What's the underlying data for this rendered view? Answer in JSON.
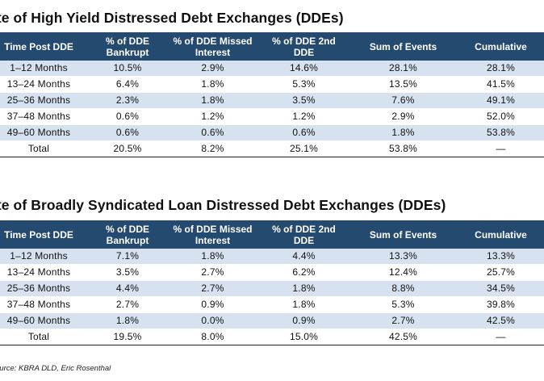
{
  "tables": [
    {
      "title": "ate of High Yield Distressed Debt Exchanges (DDEs)",
      "headers": [
        "Time Post DDE",
        "% of DDE\nBankrupt",
        "% of DDE Missed\nInterest",
        "% of DDE 2nd\nDDE",
        "Sum of Events",
        "Cumulative"
      ],
      "rows": [
        [
          "1–12 Months",
          "10.5%",
          "2.9%",
          "14.6%",
          "28.1%",
          "28.1%"
        ],
        [
          "13–24 Months",
          "6.4%",
          "1.8%",
          "5.3%",
          "13.5%",
          "41.5%"
        ],
        [
          "25–36 Months",
          "2.3%",
          "1.8%",
          "3.5%",
          "7.6%",
          "49.1%"
        ],
        [
          "37–48 Months",
          "0.6%",
          "1.2%",
          "1.2%",
          "2.9%",
          "52.0%"
        ],
        [
          "49–60 Months",
          "0.6%",
          "0.6%",
          "0.6%",
          "1.8%",
          "53.8%"
        ],
        [
          "Total",
          "20.5%",
          "8.2%",
          "25.1%",
          "53.8%",
          "—"
        ]
      ]
    },
    {
      "title": "ate of Broadly Syndicated Loan Distressed Debt Exchanges (DDEs)",
      "headers": [
        "Time Post DDE",
        "% of DDE\nBankrupt",
        "% of DDE Missed\nInterest",
        "% of DDE 2nd\nDDE",
        "Sum of Events",
        "Cumulative"
      ],
      "rows": [
        [
          "1–12 Months",
          "7.1%",
          "1.8%",
          "4.4%",
          "13.3%",
          "13.3%"
        ],
        [
          "13–24 Months",
          "3.5%",
          "2.7%",
          "6.2%",
          "12.4%",
          "25.7%"
        ],
        [
          "25–36 Months",
          "4.4%",
          "2.7%",
          "1.8%",
          "8.8%",
          "34.5%"
        ],
        [
          "37–48 Months",
          "2.7%",
          "0.9%",
          "1.8%",
          "5.3%",
          "39.8%"
        ],
        [
          "49–60 Months",
          "1.8%",
          "0.0%",
          "0.9%",
          "2.7%",
          "42.5%"
        ],
        [
          "Total",
          "19.5%",
          "8.0%",
          "15.0%",
          "42.5%",
          "—"
        ]
      ]
    }
  ],
  "source": "ource: KBRA DLD, Eric Rosenthal",
  "colors": {
    "header_bg": "#254a6f",
    "header_text": "#ffffff",
    "shaded_row": "#d6e2ef",
    "rule": "#222222"
  }
}
